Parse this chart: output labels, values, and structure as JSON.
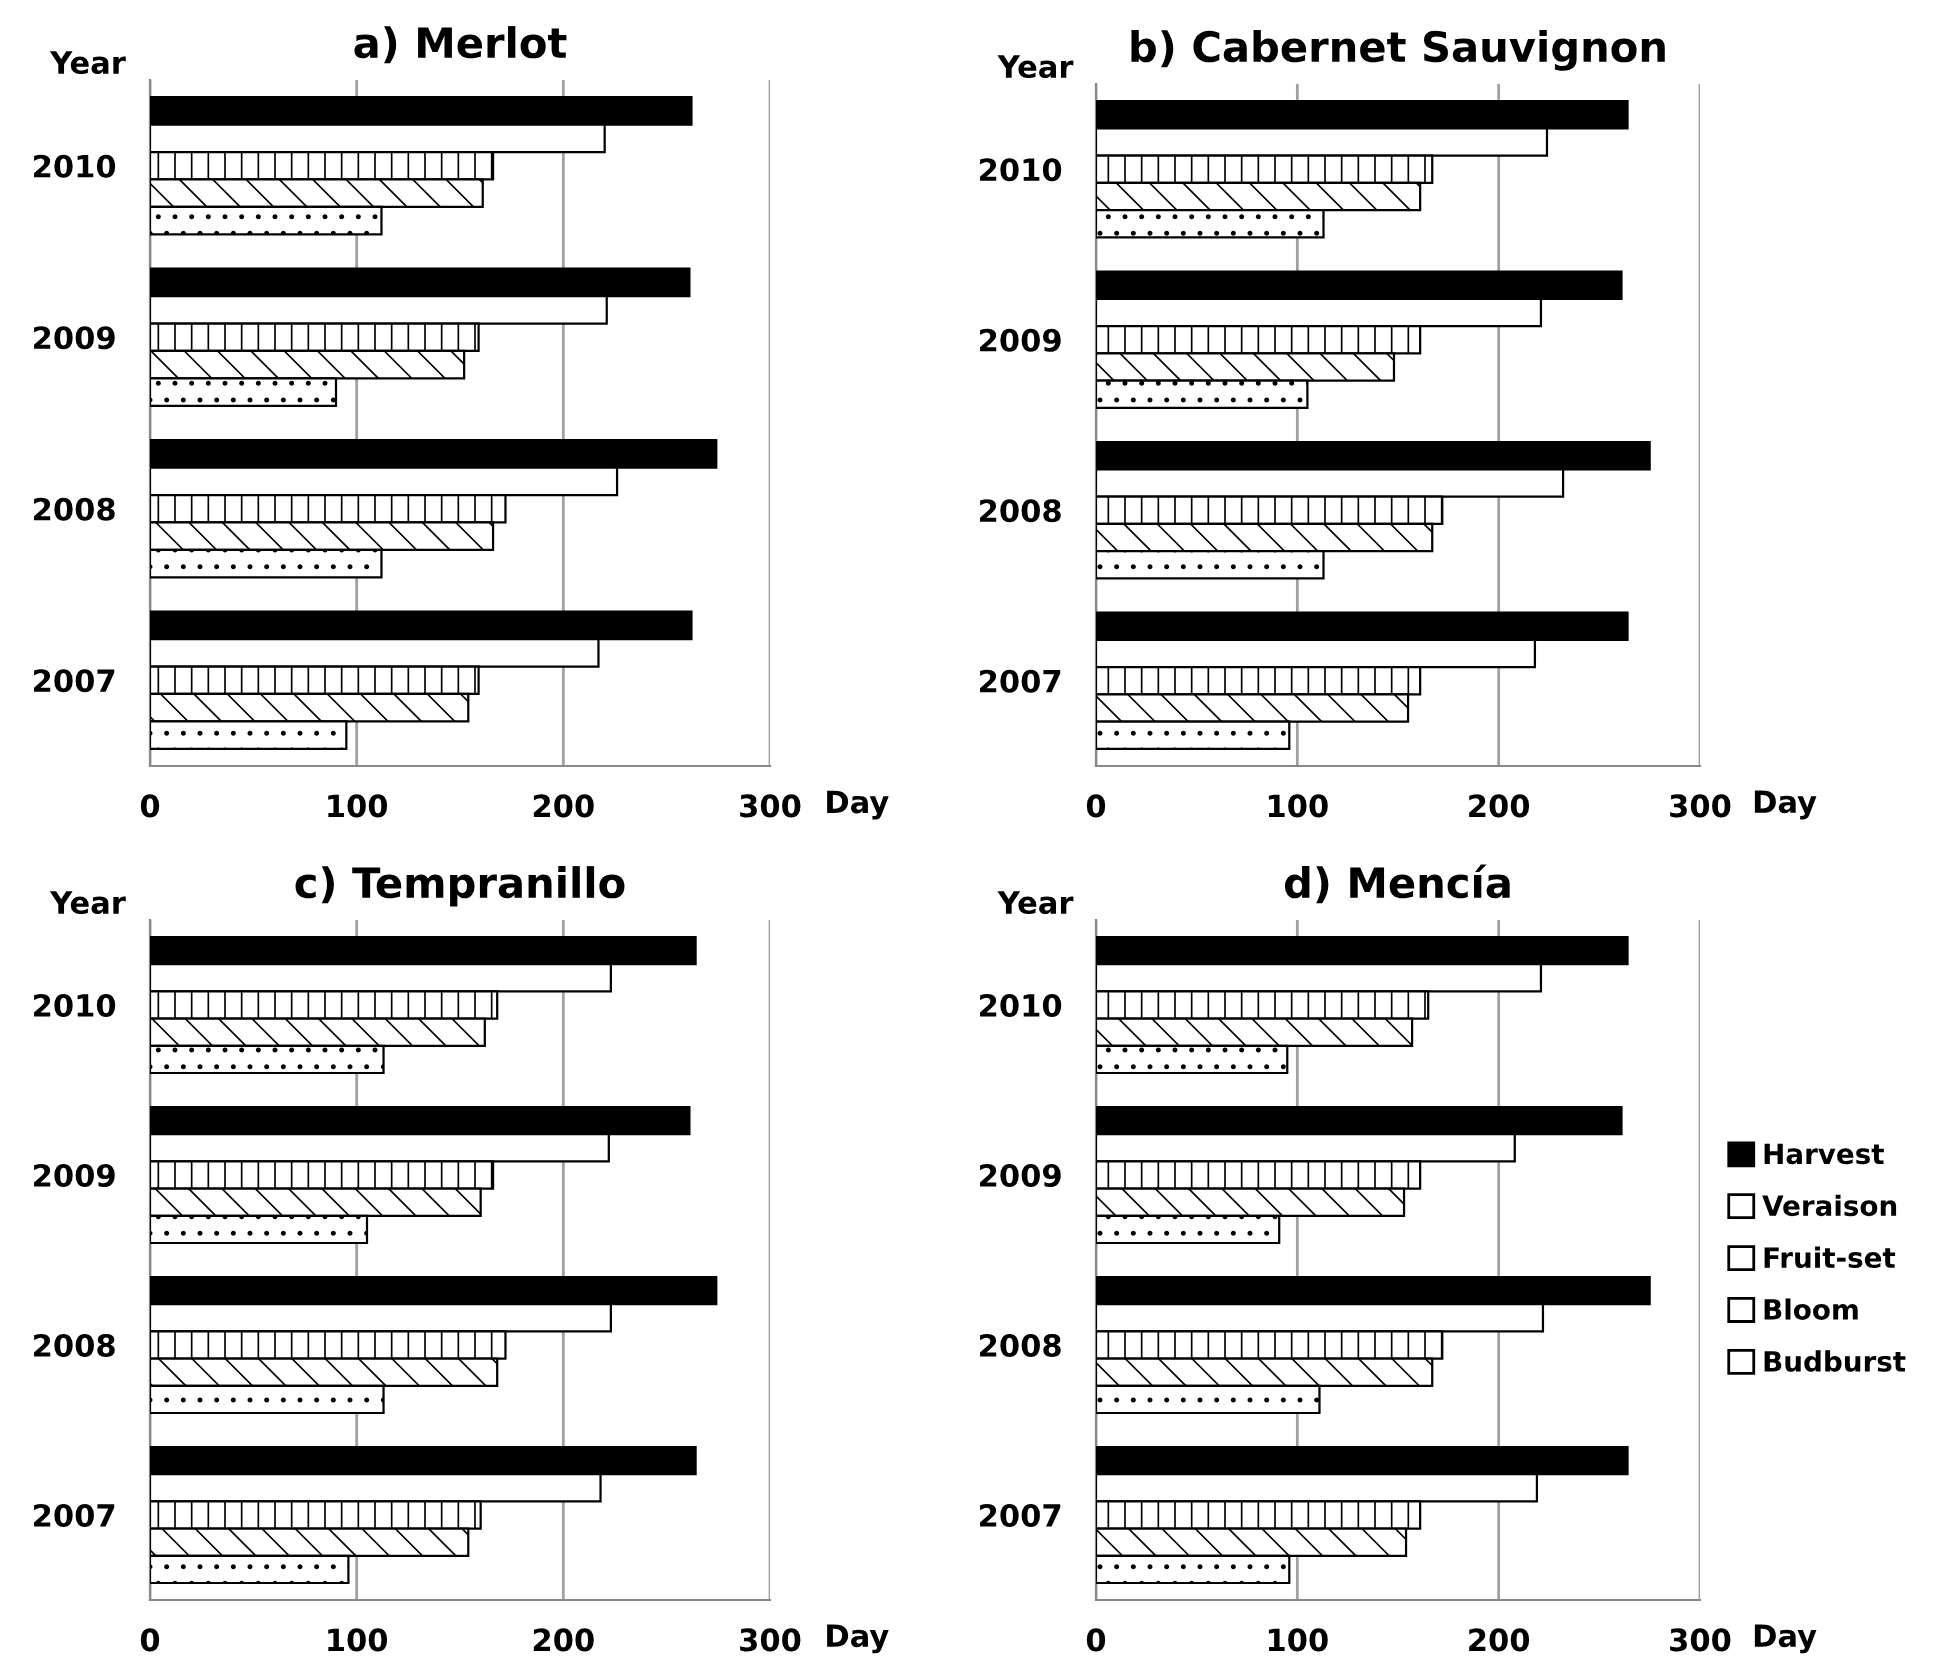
{
  "chart_data": [
    {
      "type": "bar",
      "title": "a) Merlot",
      "xlabel": "Day",
      "ylabel": "Year",
      "orientation": "horizontal",
      "categories": [
        "2010",
        "2009",
        "2008",
        "2007"
      ],
      "xlim": [
        0,
        300
      ],
      "xticks": [
        0,
        100,
        200,
        300
      ],
      "grid": "x",
      "series": [
        {
          "color": "#000000",
          "values": [
            262,
            261,
            274,
            262
          ]
        },
        {
          "color": "#ffffff",
          "values": [
            220,
            221,
            226,
            217
          ]
        },
        {
          "color": "#ffffff",
          "values": [
            166,
            159,
            172,
            159
          ]
        },
        {
          "color": "#ffffff",
          "values": [
            161,
            152,
            166,
            154
          ]
        },
        {
          "color": "#ffffff",
          "values": [
            112,
            90,
            112,
            95
          ]
        }
      ]
    },
    {
      "type": "bar",
      "title": "b) Cabernet Sauvignon",
      "xlabel": "Day",
      "ylabel": "Year",
      "orientation": "horizontal",
      "categories": [
        "2010",
        "2009",
        "2008",
        "2007"
      ],
      "xlim": [
        0,
        300
      ],
      "xticks": [
        0,
        100,
        200,
        300
      ],
      "grid": "x",
      "series": [
        {
          "color": "#000000",
          "values": [
            264,
            261,
            275,
            264
          ]
        },
        {
          "color": "#ffffff",
          "values": [
            224,
            221,
            232,
            218
          ]
        },
        {
          "color": "#ffffff",
          "values": [
            167,
            161,
            172,
            161
          ]
        },
        {
          "color": "#ffffff",
          "values": [
            161,
            148,
            167,
            155
          ]
        },
        {
          "color": "#ffffff",
          "values": [
            113,
            105,
            113,
            96
          ]
        }
      ]
    },
    {
      "type": "bar",
      "title": "c) Tempranillo",
      "xlabel": "Day",
      "ylabel": "Year",
      "orientation": "horizontal",
      "categories": [
        "2010",
        "2009",
        "2008",
        "2007"
      ],
      "xlim": [
        0,
        300
      ],
      "xticks": [
        0,
        100,
        200,
        300
      ],
      "grid": "x",
      "series": [
        {
          "color": "#000000",
          "values": [
            264,
            261,
            274,
            264
          ]
        },
        {
          "color": "#ffffff",
          "values": [
            223,
            222,
            223,
            218
          ]
        },
        {
          "color": "#ffffff",
          "values": [
            168,
            166,
            172,
            160
          ]
        },
        {
          "color": "#ffffff",
          "values": [
            162,
            160,
            168,
            154
          ]
        },
        {
          "color": "#ffffff",
          "values": [
            113,
            105,
            113,
            96
          ]
        }
      ]
    },
    {
      "type": "bar",
      "title": "d) Mencía",
      "xlabel": "Day",
      "ylabel": "Year",
      "orientation": "horizontal",
      "categories": [
        "2010",
        "2009",
        "2008",
        "2007"
      ],
      "xlim": [
        0,
        300
      ],
      "xticks": [
        0,
        100,
        200,
        300
      ],
      "grid": "x",
      "legend": "right",
      "series": [
        {
          "name": "Harvest",
          "color": "#000000",
          "values": [
            264,
            261,
            275,
            264
          ]
        },
        {
          "name": "Veraison",
          "color": "#ffffff",
          "values": [
            221,
            208,
            222,
            219
          ]
        },
        {
          "name": "Fruit-set",
          "color": "#ffffff",
          "values": [
            165,
            161,
            172,
            161
          ]
        },
        {
          "name": "Bloom",
          "color": "#ffffff",
          "values": [
            157,
            153,
            167,
            154
          ]
        },
        {
          "name": "Budburst",
          "color": "#ffffff",
          "values": [
            95,
            91,
            111,
            96
          ]
        }
      ]
    }
  ]
}
